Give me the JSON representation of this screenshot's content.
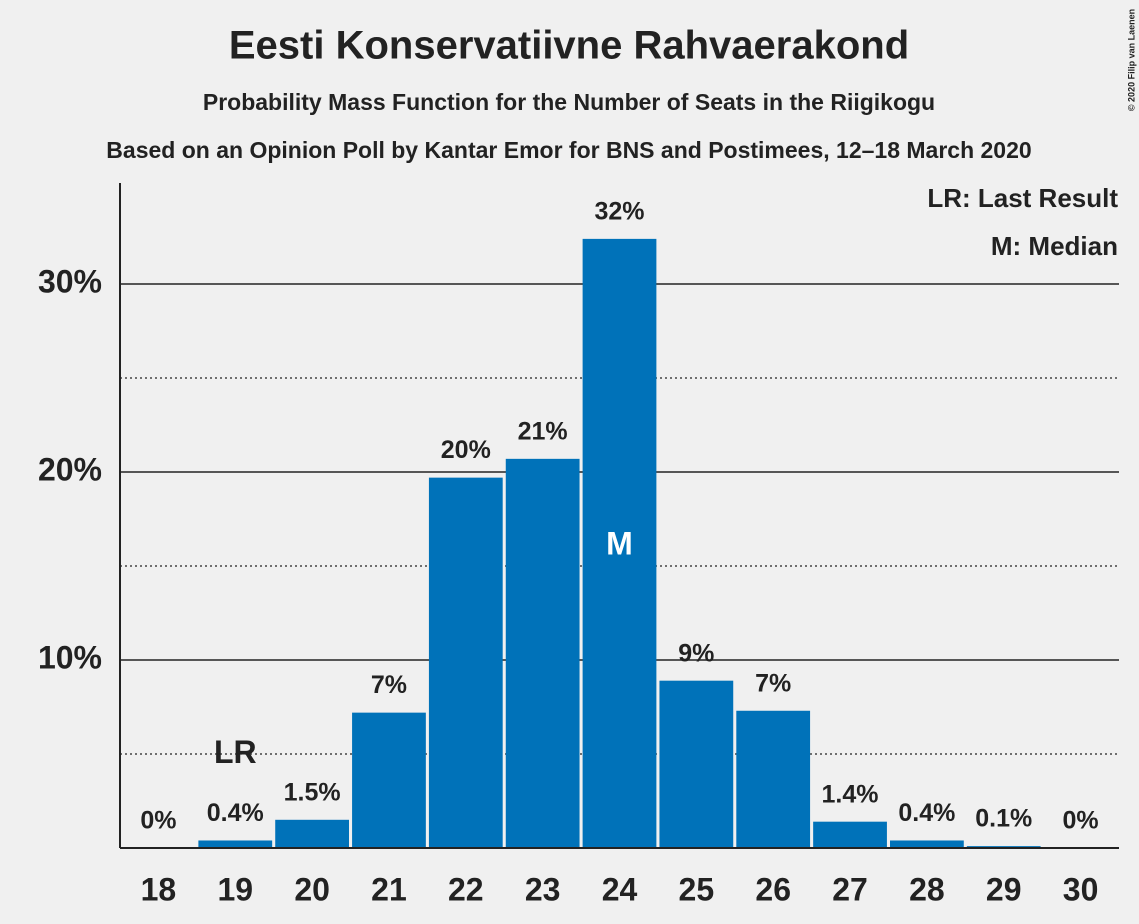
{
  "chart_data": {
    "type": "bar",
    "title": "Eesti Konservatiivne Rahvaerakond",
    "subtitle": "Probability Mass Function for the Number of Seats in the Riigikogu",
    "subtitle2": "Based on an Opinion Poll by Kantar Emor for BNS and Postimees, 12–18 March 2020",
    "copyright": "© 2020 Filip van Laenen",
    "x": [
      18,
      19,
      20,
      21,
      22,
      23,
      24,
      25,
      26,
      27,
      28,
      29,
      30
    ],
    "values": [
      0,
      0.4,
      1.5,
      7.2,
      19.7,
      20.7,
      32.4,
      8.9,
      7.3,
      1.4,
      0.4,
      0.1,
      0
    ],
    "value_labels": [
      "0%",
      "0.4%",
      "1.5%",
      "7%",
      "20%",
      "21%",
      "32%",
      "9%",
      "7%",
      "1.4%",
      "0.4%",
      "0.1%",
      "0%"
    ],
    "color": "#0072b9",
    "xlim": [
      17.5,
      30.5
    ],
    "xticks": [
      18,
      19,
      20,
      21,
      22,
      23,
      24,
      25,
      26,
      27,
      28,
      29,
      30
    ],
    "ylim": [
      0,
      35
    ],
    "yticks": [
      {
        "value": 10,
        "label": "10%"
      },
      {
        "value": 20,
        "label": "20%"
      },
      {
        "value": 30,
        "label": "30%"
      }
    ],
    "minor_yticks": [
      5,
      15,
      25
    ],
    "grid": true,
    "annotations": [
      {
        "text": "LR",
        "x": 19
      },
      {
        "text": "M",
        "x": 24
      }
    ],
    "legend": [
      "LR: Last Result",
      "M: Median"
    ],
    "legend_position": "upper right"
  }
}
